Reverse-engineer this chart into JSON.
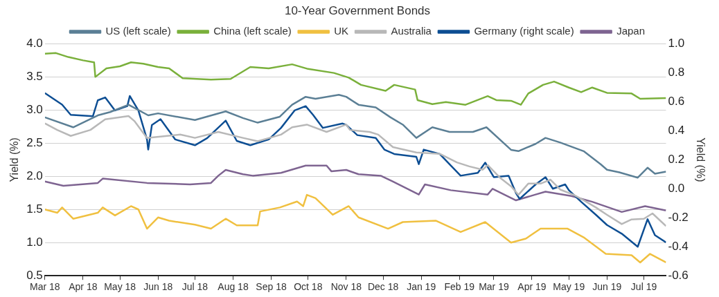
{
  "chart_data": {
    "type": "line",
    "title": "10-Year Government Bonds",
    "ylabel": "Yield (%)",
    "y2label": "Yield (%)",
    "xlim": [
      "2018-03-01",
      "2019-07-19"
    ],
    "xticks": [
      {
        "value": "2018-03-01",
        "label": "Mar 18"
      },
      {
        "value": "2018-04-01",
        "label": "Apr 18"
      },
      {
        "value": "2018-05-01",
        "label": "May 18"
      },
      {
        "value": "2018-06-01",
        "label": "Jun 18"
      },
      {
        "value": "2018-07-01",
        "label": "Jul 18"
      },
      {
        "value": "2018-08-01",
        "label": "Aug 18"
      },
      {
        "value": "2018-09-01",
        "label": "Sep 18"
      },
      {
        "value": "2018-10-01",
        "label": "Oct 18"
      },
      {
        "value": "2018-11-01",
        "label": "Nov 18"
      },
      {
        "value": "2018-12-01",
        "label": "Dec 18"
      },
      {
        "value": "2019-01-01",
        "label": "Jan 19"
      },
      {
        "value": "2019-02-01",
        "label": "Feb 19"
      },
      {
        "value": "2019-03-01",
        "label": "Mar 19"
      },
      {
        "value": "2019-04-01",
        "label": "Apr 19"
      },
      {
        "value": "2019-05-01",
        "label": "May 19"
      },
      {
        "value": "2019-06-01",
        "label": "Jun 19"
      },
      {
        "value": "2019-07-01",
        "label": "Jul 19"
      }
    ],
    "ylim": [
      0.5,
      4.0
    ],
    "yticks": [
      {
        "value": 0.5,
        "label": "0.5"
      },
      {
        "value": 1.0,
        "label": "1.0"
      },
      {
        "value": 1.5,
        "label": "1.5"
      },
      {
        "value": 2.0,
        "label": "2.0"
      },
      {
        "value": 2.5,
        "label": "2.5"
      },
      {
        "value": 3.0,
        "label": "3.0"
      },
      {
        "value": 3.5,
        "label": "3.5"
      },
      {
        "value": 4.0,
        "label": "4.0"
      }
    ],
    "y2lim": [
      -0.6,
      1.0
    ],
    "y2ticks": [
      {
        "value": -0.6,
        "label": "-0.6"
      },
      {
        "value": -0.4,
        "label": "-0.4"
      },
      {
        "value": -0.2,
        "label": "-0.2"
      },
      {
        "value": 0,
        "label": "0.0"
      },
      {
        "value": 0.2,
        "label": "0.2"
      },
      {
        "value": 0.4,
        "label": "0.4"
      },
      {
        "value": 0.6,
        "label": "0.6"
      },
      {
        "value": 0.8,
        "label": "0.8"
      },
      {
        "value": 1.0,
        "label": "1.0"
      }
    ],
    "grid": "y",
    "legend": "top",
    "marker": "none",
    "line_style": "solid",
    "series": [
      {
        "name": "US (left scale)",
        "color": "#5b7f95",
        "x": [
          "2018-03-01",
          "2018-03-24",
          "2018-04-13",
          "2018-04-23",
          "2018-05-08",
          "2018-05-24",
          "2018-06-01",
          "2018-07-01",
          "2018-07-26",
          "2018-08-09",
          "2018-08-21",
          "2018-09-08",
          "2018-09-18",
          "2018-09-29",
          "2018-10-07",
          "2018-10-26",
          "2018-11-01",
          "2018-11-11",
          "2018-11-25",
          "2018-12-07",
          "2018-12-17",
          "2018-12-28",
          "2019-01-10",
          "2019-01-24",
          "2019-02-12",
          "2019-02-23",
          "2019-03-15",
          "2019-03-21",
          "2019-04-04",
          "2019-04-12",
          "2019-04-24",
          "2019-05-13",
          "2019-05-27",
          "2019-06-01",
          "2019-06-11",
          "2019-06-26",
          "2019-07-04",
          "2019-07-10",
          "2019-07-19"
        ],
        "values": [
          2.89,
          2.74,
          2.92,
          2.97,
          3.08,
          2.92,
          2.95,
          2.85,
          2.98,
          2.88,
          2.81,
          2.9,
          3.08,
          3.2,
          3.17,
          3.23,
          3.2,
          3.08,
          3.04,
          2.89,
          2.78,
          2.58,
          2.74,
          2.67,
          2.67,
          2.74,
          2.4,
          2.38,
          2.49,
          2.58,
          2.51,
          2.38,
          2.18,
          2.1,
          2.06,
          1.98,
          2.13,
          2.04,
          2.07
        ]
      },
      {
        "name": "China (left scale)",
        "color": "#7ab03b",
        "x": [
          "2018-03-01",
          "2018-03-10",
          "2018-03-20",
          "2018-04-01",
          "2018-04-10",
          "2018-04-11",
          "2018-04-20",
          "2018-05-01",
          "2018-05-10",
          "2018-05-20",
          "2018-06-01",
          "2018-06-10",
          "2018-06-21",
          "2018-07-14",
          "2018-07-30",
          "2018-08-15",
          "2018-08-30",
          "2018-09-18",
          "2018-10-01",
          "2018-10-22",
          "2018-11-03",
          "2018-11-13",
          "2018-12-03",
          "2018-12-10",
          "2018-12-27",
          "2018-12-29",
          "2019-01-10",
          "2019-01-21",
          "2019-02-06",
          "2019-02-24",
          "2019-03-03",
          "2019-03-15",
          "2019-03-23",
          "2019-03-29",
          "2019-04-10",
          "2019-04-19",
          "2019-05-01",
          "2019-05-11",
          "2019-05-20",
          "2019-06-01",
          "2019-06-21",
          "2019-06-28",
          "2019-07-19"
        ],
        "values": [
          3.85,
          3.86,
          3.8,
          3.75,
          3.72,
          3.5,
          3.63,
          3.66,
          3.72,
          3.7,
          3.65,
          3.63,
          3.48,
          3.46,
          3.47,
          3.65,
          3.63,
          3.69,
          3.62,
          3.56,
          3.49,
          3.38,
          3.29,
          3.38,
          3.31,
          3.15,
          3.09,
          3.12,
          3.08,
          3.21,
          3.15,
          3.14,
          3.08,
          3.25,
          3.38,
          3.43,
          3.34,
          3.27,
          3.34,
          3.26,
          3.25,
          3.17,
          3.18
        ]
      },
      {
        "name": "UK",
        "color": "#f0c040",
        "x": [
          "2018-03-01",
          "2018-03-11",
          "2018-03-15",
          "2018-03-24",
          "2018-04-13",
          "2018-04-17",
          "2018-04-27",
          "2018-05-10",
          "2018-05-16",
          "2018-05-23",
          "2018-06-01",
          "2018-06-10",
          "2018-07-01",
          "2018-07-14",
          "2018-07-26",
          "2018-08-04",
          "2018-08-21",
          "2018-08-23",
          "2018-09-08",
          "2018-09-22",
          "2018-09-27",
          "2018-09-30",
          "2018-10-07",
          "2018-10-21",
          "2018-11-03",
          "2018-11-11",
          "2018-12-05",
          "2018-12-17",
          "2019-01-13",
          "2019-02-02",
          "2019-02-22",
          "2019-03-15",
          "2019-03-27",
          "2019-04-08",
          "2019-04-30",
          "2019-05-13",
          "2019-05-31",
          "2019-06-21",
          "2019-06-28",
          "2019-07-06",
          "2019-07-19"
        ],
        "values": [
          1.5,
          1.45,
          1.53,
          1.36,
          1.45,
          1.53,
          1.41,
          1.55,
          1.5,
          1.21,
          1.38,
          1.33,
          1.27,
          1.21,
          1.36,
          1.26,
          1.26,
          1.47,
          1.53,
          1.62,
          1.55,
          1.72,
          1.67,
          1.42,
          1.55,
          1.38,
          1.21,
          1.31,
          1.33,
          1.16,
          1.31,
          1.0,
          1.06,
          1.21,
          1.21,
          1.08,
          0.83,
          0.81,
          0.7,
          0.83,
          0.7
        ]
      },
      {
        "name": "Australia",
        "color": "#b8b8b8",
        "x": [
          "2018-03-01",
          "2018-03-11",
          "2018-03-22",
          "2018-04-07",
          "2018-04-19",
          "2018-05-08",
          "2018-05-13",
          "2018-05-23",
          "2018-06-19",
          "2018-07-01",
          "2018-07-20",
          "2018-08-09",
          "2018-08-21",
          "2018-09-09",
          "2018-09-18",
          "2018-09-30",
          "2018-10-16",
          "2018-11-01",
          "2018-11-04",
          "2018-11-20",
          "2018-11-27",
          "2018-12-09",
          "2018-12-28",
          "2019-01-16",
          "2019-01-30",
          "2019-02-09",
          "2019-02-20",
          "2019-02-24",
          "2019-03-06",
          "2019-03-15",
          "2019-03-21",
          "2019-03-29",
          "2019-04-08",
          "2019-04-16",
          "2019-04-24",
          "2019-05-05",
          "2019-05-13",
          "2019-05-23",
          "2019-06-01",
          "2019-06-13",
          "2019-06-21",
          "2019-07-01",
          "2019-07-08",
          "2019-07-19"
        ],
        "values": [
          2.8,
          2.7,
          2.61,
          2.7,
          2.86,
          2.91,
          2.83,
          2.58,
          2.63,
          2.58,
          2.67,
          2.58,
          2.53,
          2.63,
          2.74,
          2.78,
          2.67,
          2.78,
          2.7,
          2.67,
          2.63,
          2.44,
          2.36,
          2.34,
          2.21,
          2.15,
          2.1,
          2.17,
          1.98,
          1.85,
          1.72,
          1.89,
          1.89,
          1.95,
          1.8,
          1.72,
          1.64,
          1.53,
          1.42,
          1.28,
          1.35,
          1.36,
          1.44,
          1.25
        ]
      },
      {
        "name": "Germany (right scale)",
        "color": "#0d4e93",
        "axis": "y2",
        "x": [
          "2018-03-01",
          "2018-03-15",
          "2018-03-22",
          "2018-04-09",
          "2018-04-13",
          "2018-04-19",
          "2018-04-27",
          "2018-05-07",
          "2018-05-09",
          "2018-05-16",
          "2018-05-23",
          "2018-05-24",
          "2018-05-27",
          "2018-06-03",
          "2018-06-15",
          "2018-07-01",
          "2018-07-11",
          "2018-07-26",
          "2018-08-04",
          "2018-08-15",
          "2018-08-30",
          "2018-09-09",
          "2018-09-20",
          "2018-09-29",
          "2018-10-05",
          "2018-10-13",
          "2018-10-29",
          "2018-11-01",
          "2018-11-10",
          "2018-11-25",
          "2018-12-02",
          "2018-12-10",
          "2018-12-28",
          "2018-12-30",
          "2019-01-03",
          "2019-01-16",
          "2019-01-25",
          "2019-02-02",
          "2019-02-16",
          "2019-02-22",
          "2019-03-01",
          "2019-03-13",
          "2019-03-19",
          "2019-03-22",
          "2019-04-04",
          "2019-04-12",
          "2019-04-18",
          "2019-04-28",
          "2019-05-01",
          "2019-05-11",
          "2019-05-23",
          "2019-06-01",
          "2019-06-13",
          "2019-06-26",
          "2019-07-04",
          "2019-07-10",
          "2019-07-19"
        ],
        "values": [
          0.66,
          0.58,
          0.51,
          0.5,
          0.61,
          0.63,
          0.54,
          0.57,
          0.64,
          0.54,
          0.34,
          0.27,
          0.44,
          0.48,
          0.34,
          0.3,
          0.35,
          0.47,
          0.33,
          0.3,
          0.34,
          0.42,
          0.54,
          0.57,
          0.51,
          0.42,
          0.45,
          0.44,
          0.37,
          0.35,
          0.27,
          0.24,
          0.22,
          0.17,
          0.27,
          0.24,
          0.16,
          0.09,
          0.11,
          0.18,
          0.08,
          0.09,
          -0.03,
          -0.07,
          0.03,
          0.08,
          0.0,
          0.03,
          -0.01,
          -0.09,
          -0.18,
          -0.25,
          -0.31,
          -0.4,
          -0.21,
          -0.32,
          -0.37
        ]
      },
      {
        "name": "Japan",
        "color": "#7e6491",
        "axis": "y2",
        "x": [
          "2018-03-01",
          "2018-03-16",
          "2018-04-13",
          "2018-04-17",
          "2018-05-23",
          "2018-06-27",
          "2018-07-14",
          "2018-07-20",
          "2018-07-26",
          "2018-08-09",
          "2018-08-17",
          "2018-09-09",
          "2018-09-29",
          "2018-10-16",
          "2018-10-20",
          "2018-11-01",
          "2018-11-11",
          "2018-11-29",
          "2018-12-09",
          "2018-12-30",
          "2019-01-04",
          "2019-01-25",
          "2019-02-24",
          "2019-02-28",
          "2019-03-19",
          "2019-04-04",
          "2019-04-12",
          "2019-05-03",
          "2019-05-20",
          "2019-06-13",
          "2019-07-02",
          "2019-07-19"
        ],
        "values": [
          0.05,
          0.02,
          0.04,
          0.07,
          0.04,
          0.03,
          0.04,
          0.09,
          0.13,
          0.1,
          0.09,
          0.11,
          0.16,
          0.16,
          0.12,
          0.13,
          0.1,
          0.09,
          0.05,
          -0.04,
          0.03,
          -0.01,
          -0.04,
          0.0,
          -0.08,
          -0.04,
          -0.02,
          -0.05,
          -0.09,
          -0.16,
          -0.12,
          -0.15
        ]
      }
    ]
  }
}
